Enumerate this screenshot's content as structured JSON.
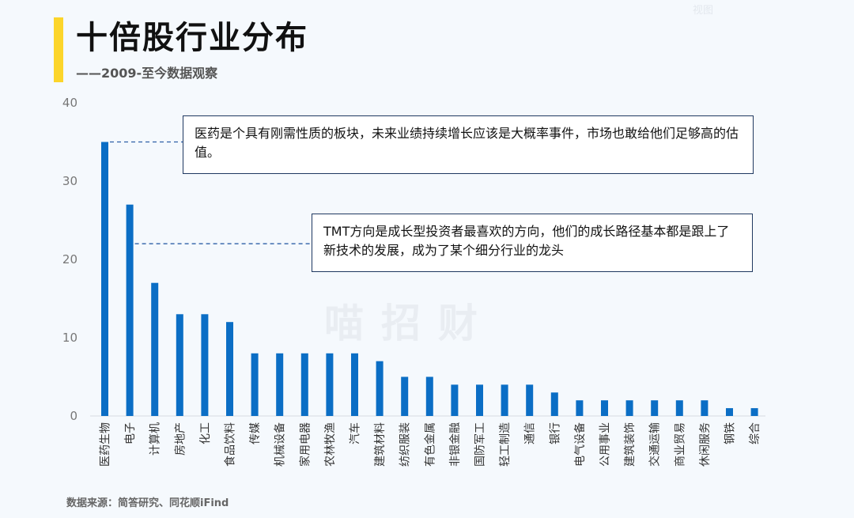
{
  "header": {
    "title": "十倍股行业分布",
    "subtitle": "——2009-至今数据观察",
    "top_mark": "视图"
  },
  "watermark": "喵招财",
  "footer": {
    "source": "数据来源：简答研究、同花顺iFind"
  },
  "annotations": [
    "医药是个具有刚需性质的板块，未来业绩持续增长应该是大概率事件，市场也敢给他们足够高的估值。",
    "TMT方向是成长型投资者最喜欢的方向，他们的成长路径基本都是跟上了新技术的发展，成为了某个细分行业的龙头"
  ],
  "colors": {
    "bar": "#0b6ec5",
    "accent": "#fcd52a",
    "callout_border": "#1f3860",
    "leader_line": "#2d5fa8"
  },
  "chart_data": {
    "type": "bar",
    "title": "",
    "xlabel": "",
    "ylabel": "",
    "categories": [
      "医药生物",
      "电子",
      "计算机",
      "房地产",
      "化工",
      "食品饮料",
      "传媒",
      "机械设备",
      "家用电器",
      "农林牧渔",
      "汽车",
      "建筑材料",
      "纺织服装",
      "有色金属",
      "非银金融",
      "国防军工",
      "轻工制造",
      "通信",
      "银行",
      "电气设备",
      "公用事业",
      "建筑装饰",
      "交通运输",
      "商业贸易",
      "休闲服务",
      "钢铁",
      "综合"
    ],
    "values": [
      35,
      27,
      17,
      13,
      13,
      12,
      8,
      8,
      8,
      8,
      8,
      7,
      5,
      5,
      4,
      4,
      4,
      4,
      3,
      2,
      2,
      2,
      2,
      2,
      2,
      1,
      1
    ],
    "ylim": [
      0,
      40
    ],
    "yticks": [
      0,
      10,
      20,
      30,
      40
    ],
    "grid": false,
    "legend": "none"
  }
}
